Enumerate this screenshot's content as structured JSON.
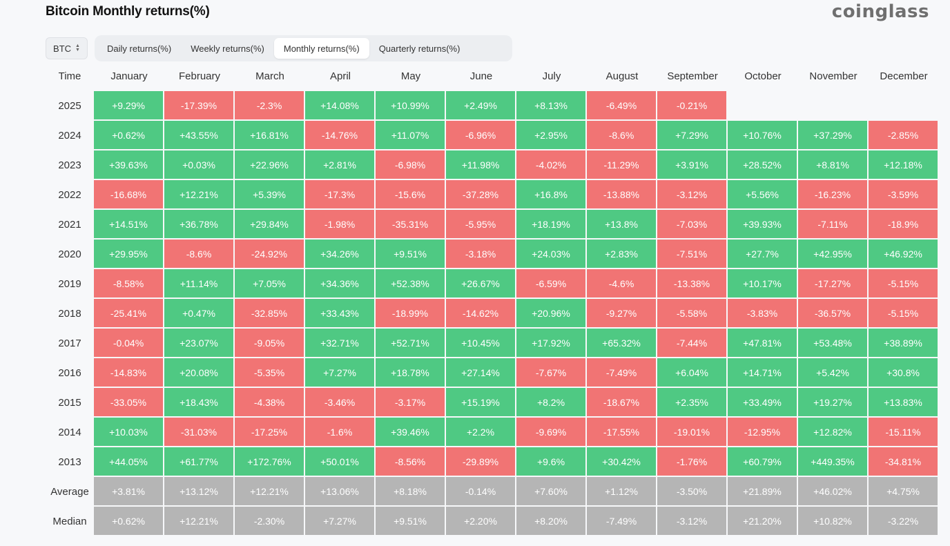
{
  "title": "Bitcoin Monthly returns(%)",
  "logo": "coinglass",
  "coin_select": {
    "value": "BTC",
    "icon": "chevron-updown-icon"
  },
  "tabs": [
    {
      "label": "Daily returns(%)",
      "active": false
    },
    {
      "label": "Weekly returns(%)",
      "active": false
    },
    {
      "label": "Monthly returns(%)",
      "active": true
    },
    {
      "label": "Quarterly returns(%)",
      "active": false
    }
  ],
  "colors": {
    "positive": "#4fc983",
    "negative": "#f17474",
    "summary": "#b5b5b5"
  },
  "table": {
    "time_header": "Time",
    "months": [
      "January",
      "February",
      "March",
      "April",
      "May",
      "June",
      "July",
      "August",
      "September",
      "October",
      "November",
      "December"
    ],
    "rows": [
      {
        "year": "2025",
        "values": [
          "+9.29%",
          "-17.39%",
          "-2.3%",
          "+14.08%",
          "+10.99%",
          "+2.49%",
          "+8.13%",
          "-6.49%",
          "-0.21%",
          "",
          "",
          ""
        ]
      },
      {
        "year": "2024",
        "values": [
          "+0.62%",
          "+43.55%",
          "+16.81%",
          "-14.76%",
          "+11.07%",
          "-6.96%",
          "+2.95%",
          "-8.6%",
          "+7.29%",
          "+10.76%",
          "+37.29%",
          "-2.85%"
        ]
      },
      {
        "year": "2023",
        "values": [
          "+39.63%",
          "+0.03%",
          "+22.96%",
          "+2.81%",
          "-6.98%",
          "+11.98%",
          "-4.02%",
          "-11.29%",
          "+3.91%",
          "+28.52%",
          "+8.81%",
          "+12.18%"
        ]
      },
      {
        "year": "2022",
        "values": [
          "-16.68%",
          "+12.21%",
          "+5.39%",
          "-17.3%",
          "-15.6%",
          "-37.28%",
          "+16.8%",
          "-13.88%",
          "-3.12%",
          "+5.56%",
          "-16.23%",
          "-3.59%"
        ]
      },
      {
        "year": "2021",
        "values": [
          "+14.51%",
          "+36.78%",
          "+29.84%",
          "-1.98%",
          "-35.31%",
          "-5.95%",
          "+18.19%",
          "+13.8%",
          "-7.03%",
          "+39.93%",
          "-7.11%",
          "-18.9%"
        ]
      },
      {
        "year": "2020",
        "values": [
          "+29.95%",
          "-8.6%",
          "-24.92%",
          "+34.26%",
          "+9.51%",
          "-3.18%",
          "+24.03%",
          "+2.83%",
          "-7.51%",
          "+27.7%",
          "+42.95%",
          "+46.92%"
        ]
      },
      {
        "year": "2019",
        "values": [
          "-8.58%",
          "+11.14%",
          "+7.05%",
          "+34.36%",
          "+52.38%",
          "+26.67%",
          "-6.59%",
          "-4.6%",
          "-13.38%",
          "+10.17%",
          "-17.27%",
          "-5.15%"
        ]
      },
      {
        "year": "2018",
        "values": [
          "-25.41%",
          "+0.47%",
          "-32.85%",
          "+33.43%",
          "-18.99%",
          "-14.62%",
          "+20.96%",
          "-9.27%",
          "-5.58%",
          "-3.83%",
          "-36.57%",
          "-5.15%"
        ]
      },
      {
        "year": "2017",
        "values": [
          "-0.04%",
          "+23.07%",
          "-9.05%",
          "+32.71%",
          "+52.71%",
          "+10.45%",
          "+17.92%",
          "+65.32%",
          "-7.44%",
          "+47.81%",
          "+53.48%",
          "+38.89%"
        ]
      },
      {
        "year": "2016",
        "values": [
          "-14.83%",
          "+20.08%",
          "-5.35%",
          "+7.27%",
          "+18.78%",
          "+27.14%",
          "-7.67%",
          "-7.49%",
          "+6.04%",
          "+14.71%",
          "+5.42%",
          "+30.8%"
        ]
      },
      {
        "year": "2015",
        "values": [
          "-33.05%",
          "+18.43%",
          "-4.38%",
          "-3.46%",
          "-3.17%",
          "+15.19%",
          "+8.2%",
          "-18.67%",
          "+2.35%",
          "+33.49%",
          "+19.27%",
          "+13.83%"
        ]
      },
      {
        "year": "2014",
        "values": [
          "+10.03%",
          "-31.03%",
          "-17.25%",
          "-1.6%",
          "+39.46%",
          "+2.2%",
          "-9.69%",
          "-17.55%",
          "-19.01%",
          "-12.95%",
          "+12.82%",
          "-15.11%"
        ]
      },
      {
        "year": "2013",
        "values": [
          "+44.05%",
          "+61.77%",
          "+172.76%",
          "+50.01%",
          "-8.56%",
          "-29.89%",
          "+9.6%",
          "+30.42%",
          "-1.76%",
          "+60.79%",
          "+449.35%",
          "-34.81%"
        ]
      }
    ],
    "summary_rows": [
      {
        "label": "Average",
        "values": [
          "+3.81%",
          "+13.12%",
          "+12.21%",
          "+13.06%",
          "+8.18%",
          "-0.14%",
          "+7.60%",
          "+1.12%",
          "-3.50%",
          "+21.89%",
          "+46.02%",
          "+4.75%"
        ]
      },
      {
        "label": "Median",
        "values": [
          "+0.62%",
          "+12.21%",
          "-2.30%",
          "+7.27%",
          "+9.51%",
          "+2.20%",
          "+8.20%",
          "-7.49%",
          "-3.12%",
          "+21.20%",
          "+10.82%",
          "-3.22%"
        ]
      }
    ]
  }
}
